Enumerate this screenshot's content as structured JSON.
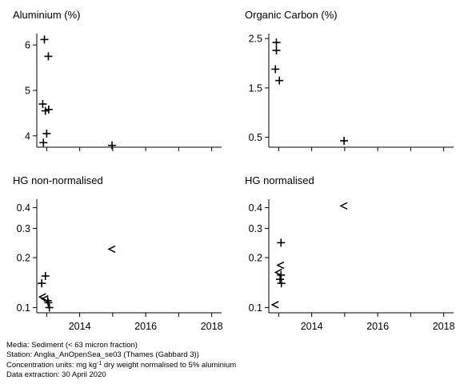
{
  "chart_data": [
    {
      "type": "scatter",
      "title": "Aluminium (%)",
      "xlim": [
        2012.7,
        2018.3
      ],
      "ylim": [
        3.75,
        6.25
      ],
      "yticks": [
        "4",
        "5",
        "6"
      ],
      "xticks": [],
      "points": [
        {
          "x": 2012.93,
          "y": 6.12,
          "marker": "+"
        },
        {
          "x": 2013.05,
          "y": 5.75,
          "marker": "+"
        },
        {
          "x": 2012.88,
          "y": 4.7,
          "marker": "+"
        },
        {
          "x": 2012.96,
          "y": 4.55,
          "marker": "+"
        },
        {
          "x": 2013.06,
          "y": 4.58,
          "marker": "+"
        },
        {
          "x": 2013.0,
          "y": 4.05,
          "marker": "+"
        },
        {
          "x": 2012.9,
          "y": 3.85,
          "marker": "+"
        },
        {
          "x": 2014.98,
          "y": 3.79,
          "marker": "+"
        }
      ]
    },
    {
      "type": "scatter",
      "title": "Organic Carbon (%)",
      "xlim": [
        2012.7,
        2018.3
      ],
      "ylim": [
        0.3,
        2.6
      ],
      "yticks": [
        "0.5",
        "1.5",
        "2.5"
      ],
      "xticks": [],
      "points": [
        {
          "x": 2012.93,
          "y": 2.42,
          "marker": "+"
        },
        {
          "x": 2012.93,
          "y": 2.26,
          "marker": "+"
        },
        {
          "x": 2012.9,
          "y": 1.88,
          "marker": "+"
        },
        {
          "x": 2013.02,
          "y": 1.65,
          "marker": "+"
        },
        {
          "x": 2014.98,
          "y": 0.43,
          "marker": "+"
        }
      ]
    },
    {
      "type": "scatter",
      "title": "HG non-normalised",
      "xlim": [
        2012.7,
        2018.3
      ],
      "ylim": [
        0.093,
        0.45
      ],
      "log_y": true,
      "yticks": [
        "0.1",
        "0.2",
        "0.3",
        "0.4"
      ],
      "xticks": [
        "2014",
        "2016",
        "2018"
      ],
      "points": [
        {
          "x": 2012.96,
          "y": 0.155,
          "marker": "+"
        },
        {
          "x": 2012.85,
          "y": 0.14,
          "marker": "+"
        },
        {
          "x": 2012.88,
          "y": 0.116,
          "marker": "<"
        },
        {
          "x": 2012.95,
          "y": 0.113,
          "marker": "<"
        },
        {
          "x": 2013.03,
          "y": 0.11,
          "marker": "+"
        },
        {
          "x": 2013.05,
          "y": 0.107,
          "marker": "+"
        },
        {
          "x": 2013.08,
          "y": 0.1,
          "marker": "+"
        },
        {
          "x": 2014.98,
          "y": 0.225,
          "marker": "<"
        }
      ]
    },
    {
      "type": "scatter",
      "title": "HG normalised",
      "xlim": [
        2012.7,
        2018.3
      ],
      "ylim": [
        0.093,
        0.45
      ],
      "log_y": true,
      "yticks": [
        "0.1",
        "0.2",
        "0.3",
        "0.4"
      ],
      "xticks": [
        "2014",
        "2016",
        "2018"
      ],
      "points": [
        {
          "x": 2013.07,
          "y": 0.246,
          "marker": "+"
        },
        {
          "x": 2013.06,
          "y": 0.18,
          "marker": "<"
        },
        {
          "x": 2013.0,
          "y": 0.163,
          "marker": "<"
        },
        {
          "x": 2013.07,
          "y": 0.157,
          "marker": "+"
        },
        {
          "x": 2013.04,
          "y": 0.148,
          "marker": "+"
        },
        {
          "x": 2013.08,
          "y": 0.14,
          "marker": "+"
        },
        {
          "x": 2012.9,
          "y": 0.104,
          "marker": "<"
        },
        {
          "x": 2014.98,
          "y": 0.41,
          "marker": "<"
        }
      ]
    }
  ],
  "footer": {
    "media": "Media: Sediment (< 63 micron fraction)",
    "station": "Station: Anglia_AnOpenSea_se03 (Thames (Gabbard 3))",
    "units_prefix": "Concentration units:  mg kg",
    "units_sup": "-1",
    "units_suffix": " dry weight normalised to 5% aluminium",
    "extraction": "Data extraction: 30 April 2020"
  }
}
